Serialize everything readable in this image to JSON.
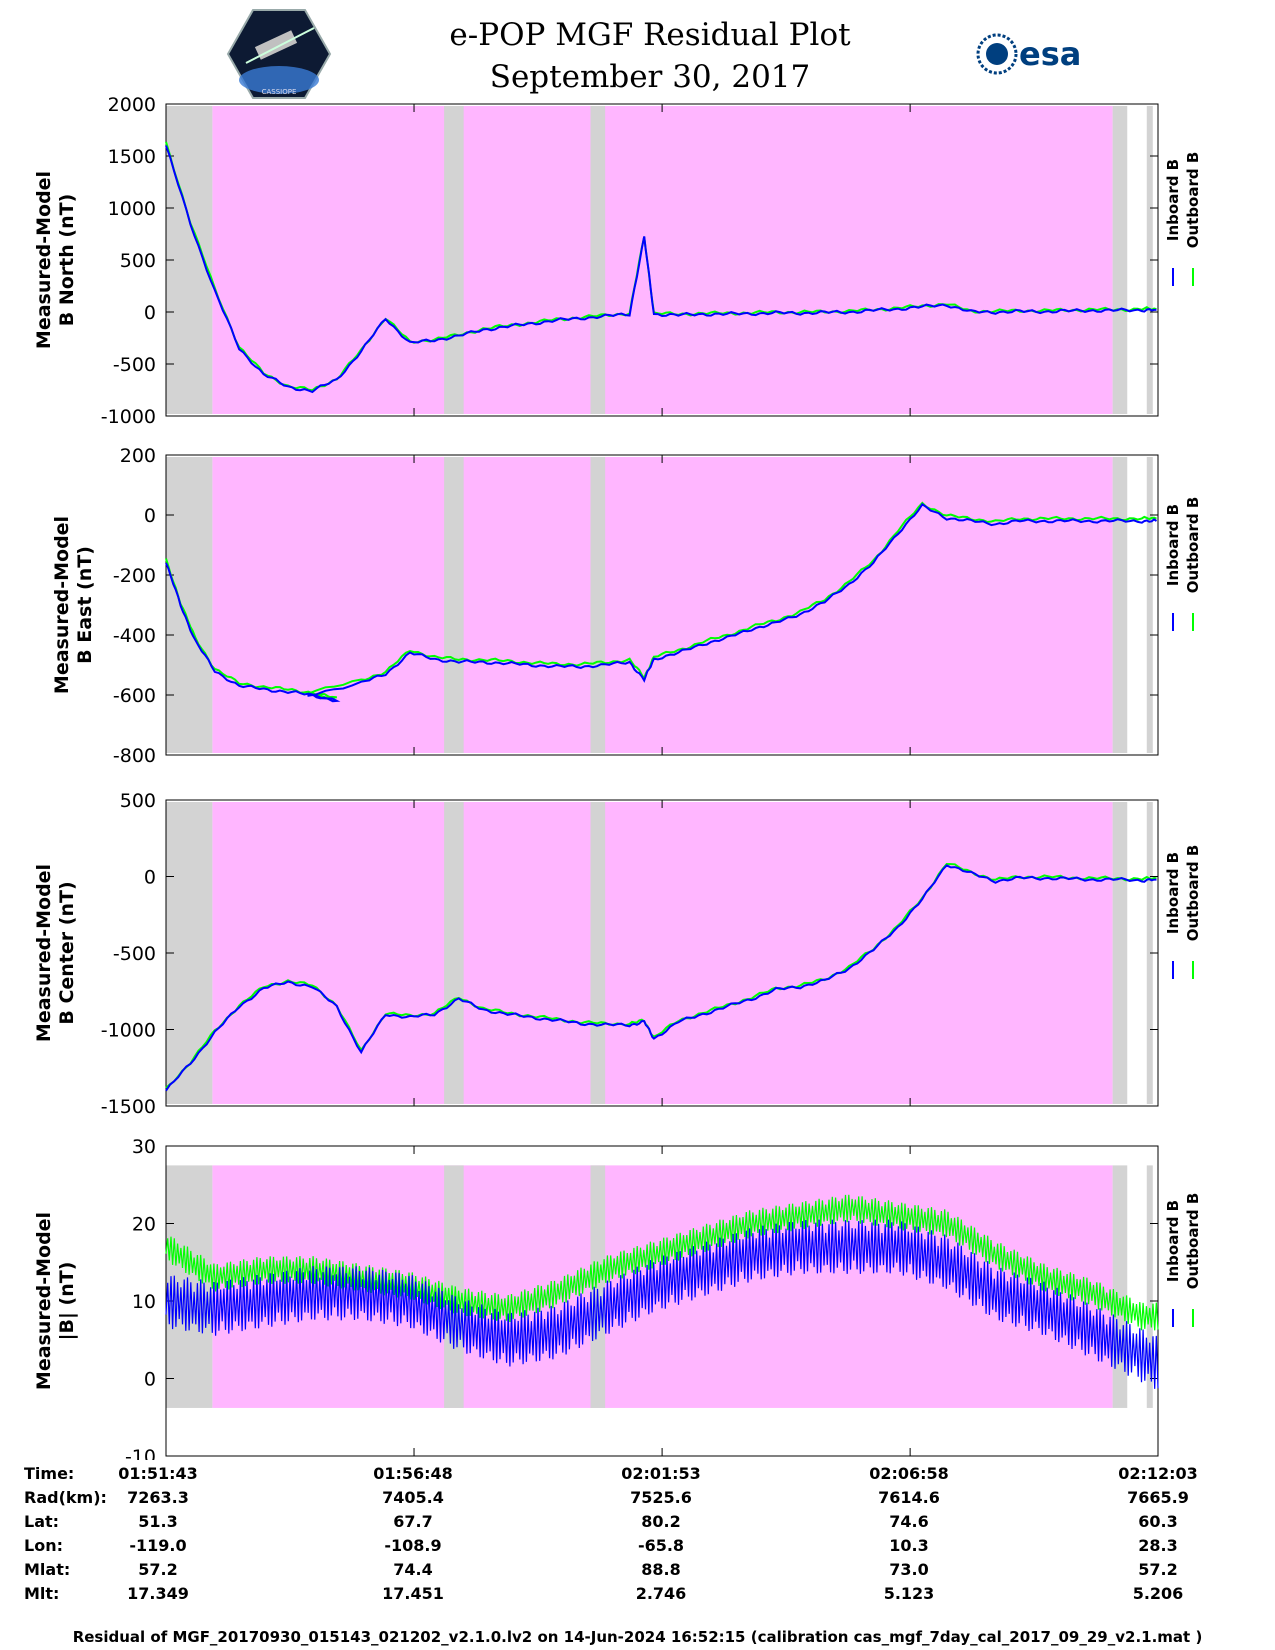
{
  "title": {
    "line1": "e-POP MGF Residual Plot",
    "line2": "September 30, 2017"
  },
  "logos": {
    "left": {
      "icon": "cassiope-satellite-logo",
      "text": "CASSIOPE"
    },
    "right": {
      "icon": "esa-logo",
      "text": "esa"
    }
  },
  "colors": {
    "inboard": "#0000ff",
    "outboard": "#00ff00",
    "region_magenta": "#ffb6ff",
    "region_gray": "#d3d3d3"
  },
  "chart_data": [
    {
      "type": "line",
      "name": "north",
      "ylabel": [
        "Measured-Model",
        "B North (nT)"
      ],
      "ylim": [
        -1000,
        2000
      ],
      "yticks": [
        "2000",
        "1500",
        "1000",
        "500",
        "0",
        "-500",
        "-1000"
      ],
      "x_minutes": [
        0,
        0.5,
        1,
        1.5,
        2,
        2.5,
        3,
        3.5,
        4,
        4.5,
        5,
        5.5,
        6,
        6.5,
        7,
        7.5,
        8,
        8.5,
        9,
        9.5,
        9.8,
        10,
        10.5,
        11,
        11.5,
        12,
        12.5,
        13,
        13.5,
        14,
        14.5,
        15,
        15.5,
        16,
        16.5,
        17,
        17.5,
        18,
        18.5,
        19,
        19.5,
        20,
        20.3
      ],
      "series": [
        {
          "name": "Inboard B",
          "values": [
            1600,
            850,
            200,
            -350,
            -600,
            -720,
            -760,
            -650,
            -380,
            -60,
            -300,
            -270,
            -230,
            -170,
            -140,
            -110,
            -80,
            -60,
            -40,
            -20,
            720,
            -20,
            -30,
            -20,
            -20,
            -15,
            -10,
            -10,
            -5,
            0,
            15,
            30,
            50,
            70,
            0,
            0,
            5,
            5,
            10,
            15,
            15,
            20,
            20
          ]
        },
        {
          "name": "Outboard B",
          "values": [
            1620,
            870,
            220,
            -335,
            -590,
            -712,
            -752,
            -642,
            -372,
            -52,
            -292,
            -262,
            -222,
            -162,
            -132,
            -102,
            -72,
            -52,
            -32,
            -12,
            728,
            -12,
            -22,
            -12,
            -12,
            -7,
            -2,
            -2,
            3,
            8,
            23,
            38,
            58,
            78,
            8,
            8,
            13,
            13,
            18,
            23,
            23,
            28,
            28
          ]
        }
      ]
    },
    {
      "type": "line",
      "name": "east",
      "ylabel": [
        "Measured-Model",
        "B East (nT)"
      ],
      "ylim": [
        -800,
        200
      ],
      "yticks": [
        "200",
        "0",
        "-200",
        "-400",
        "-600",
        "-800"
      ],
      "x_minutes": [
        0,
        0.3,
        0.6,
        1,
        1.5,
        2,
        2.5,
        3,
        3.5,
        2.9,
        4,
        4.5,
        5,
        5.5,
        6,
        6.5,
        7,
        7.5,
        8,
        8.5,
        9,
        9.5,
        9.8,
        10,
        10.5,
        11,
        11.5,
        12,
        12.5,
        13,
        13.5,
        14,
        14.5,
        15,
        15.5,
        16,
        16.5,
        17,
        17.5,
        18,
        18.5,
        19,
        19.5,
        20,
        20.3
      ],
      "series": [
        {
          "name": "Inboard B",
          "values": [
            -160,
            -300,
            -420,
            -520,
            -570,
            -580,
            -590,
            -600,
            -620,
            -600,
            -560,
            -530,
            -460,
            -480,
            -490,
            -490,
            -495,
            -500,
            -505,
            -505,
            -500,
            -490,
            -550,
            -480,
            -460,
            -430,
            -410,
            -380,
            -360,
            -330,
            -290,
            -230,
            -160,
            -60,
            30,
            -10,
            -20,
            -30,
            -20,
            -20,
            -20,
            -20,
            -20,
            -20,
            -20
          ]
        },
        {
          "name": "Outboard B",
          "values": [
            -150,
            -292,
            -412,
            -512,
            -562,
            -572,
            -582,
            -592,
            -612,
            -592,
            -552,
            -522,
            -452,
            -472,
            -482,
            -482,
            -487,
            -492,
            -497,
            -497,
            -492,
            -482,
            -542,
            -472,
            -452,
            -422,
            -402,
            -372,
            -352,
            -322,
            -282,
            -222,
            -152,
            -52,
            38,
            -2,
            -12,
            -22,
            -12,
            -12,
            -12,
            -12,
            -12,
            -12,
            -12
          ]
        }
      ]
    },
    {
      "type": "line",
      "name": "center",
      "ylabel": [
        "Measured-Model",
        "B Center (nT)"
      ],
      "ylim": [
        -1500,
        500
      ],
      "yticks": [
        "500",
        "0",
        "-500",
        "-1000",
        "-1500"
      ],
      "x_minutes": [
        0,
        0.5,
        1,
        1.5,
        2,
        2.5,
        3,
        3.5,
        4,
        4.5,
        5,
        5.5,
        6,
        6.5,
        7,
        7.5,
        8,
        8.5,
        9,
        9.5,
        9.8,
        10,
        10.5,
        11,
        11.5,
        12,
        12.5,
        13,
        13.5,
        14,
        14.5,
        15,
        15.5,
        16,
        16.5,
        17,
        17.5,
        18,
        18.5,
        19,
        19.5,
        20,
        20.3
      ],
      "series": [
        {
          "name": "Inboard B",
          "values": [
            -1400,
            -1220,
            -1020,
            -850,
            -730,
            -690,
            -720,
            -850,
            -1150,
            -900,
            -920,
            -900,
            -800,
            -870,
            -900,
            -920,
            -940,
            -960,
            -970,
            -970,
            -950,
            -1060,
            -950,
            -900,
            -850,
            -800,
            -740,
            -720,
            -680,
            -600,
            -480,
            -330,
            -150,
            80,
            20,
            -30,
            -10,
            -10,
            -15,
            -20,
            -20,
            -25,
            -20
          ]
        },
        {
          "name": "Outboard B",
          "values": [
            -1392,
            -1212,
            -1012,
            -842,
            -722,
            -682,
            -712,
            -842,
            -1142,
            -892,
            -912,
            -892,
            -792,
            -862,
            -892,
            -912,
            -932,
            -952,
            -962,
            -962,
            -942,
            -1052,
            -942,
            -892,
            -842,
            -792,
            -732,
            -712,
            -672,
            -592,
            -472,
            -322,
            -142,
            88,
            28,
            -22,
            -2,
            -2,
            -7,
            -12,
            -12,
            -17,
            -12
          ]
        }
      ]
    },
    {
      "type": "line",
      "name": "magnitude",
      "ylabel": [
        "Measured-Model",
        "|B| (nT)"
      ],
      "ylim": [
        -10,
        30
      ],
      "yticks": [
        "30",
        "20",
        "10",
        "0",
        "-10"
      ],
      "x_minutes": [
        0,
        1,
        2,
        3,
        4,
        5,
        6,
        7,
        8,
        9,
        10,
        11,
        12,
        13,
        14,
        15,
        16,
        17,
        18,
        19,
        20,
        20.3
      ],
      "series": [
        {
          "name": "Inboard B",
          "values": [
            10,
            9,
            10,
            11,
            11,
            10,
            7,
            5,
            6,
            9,
            12,
            14,
            16,
            17,
            17,
            17,
            15,
            11,
            9,
            6,
            3,
            2
          ]
        },
        {
          "name": "Outboard B",
          "values": [
            17,
            13,
            14,
            14,
            13,
            12,
            10,
            9,
            11,
            14,
            16,
            18,
            20,
            21,
            22,
            21,
            20,
            16,
            13,
            11,
            8,
            8
          ]
        }
      ]
    }
  ],
  "legend": {
    "inboard": "Inboard B",
    "outboard": "Outboard B"
  },
  "xticks": [
    "01:51:43",
    "01:56:48",
    "02:01:53",
    "02:06:58",
    "02:12:03"
  ],
  "info_rows": [
    {
      "label": "Time:",
      "values": [
        "01:51:43",
        "01:56:48",
        "02:01:53",
        "02:06:58",
        "02:12:03"
      ]
    },
    {
      "label": "Rad(km):",
      "values": [
        "7263.3",
        "7405.4",
        "7525.6",
        "7614.6",
        "7665.9"
      ]
    },
    {
      "label": "Lat:",
      "values": [
        "51.3",
        "67.7",
        "80.2",
        "74.6",
        "60.3"
      ]
    },
    {
      "label": "Lon:",
      "values": [
        "-119.0",
        "-108.9",
        "-65.8",
        "10.3",
        "28.3"
      ]
    },
    {
      "label": "Mlat:",
      "values": [
        "57.2",
        "74.4",
        "88.8",
        "73.0",
        "57.2"
      ]
    },
    {
      "label": "Mlt:",
      "values": [
        "17.349",
        "17.451",
        "2.746",
        "5.123",
        "5.206"
      ]
    }
  ],
  "footer": "Residual of MGF_20170930_015143_021202_v2.1.0.lv2 on 14-Jun-2024 16:52:15 (calibration cas_mgf_7day_cal_2017_09_29_v2.1.mat )"
}
